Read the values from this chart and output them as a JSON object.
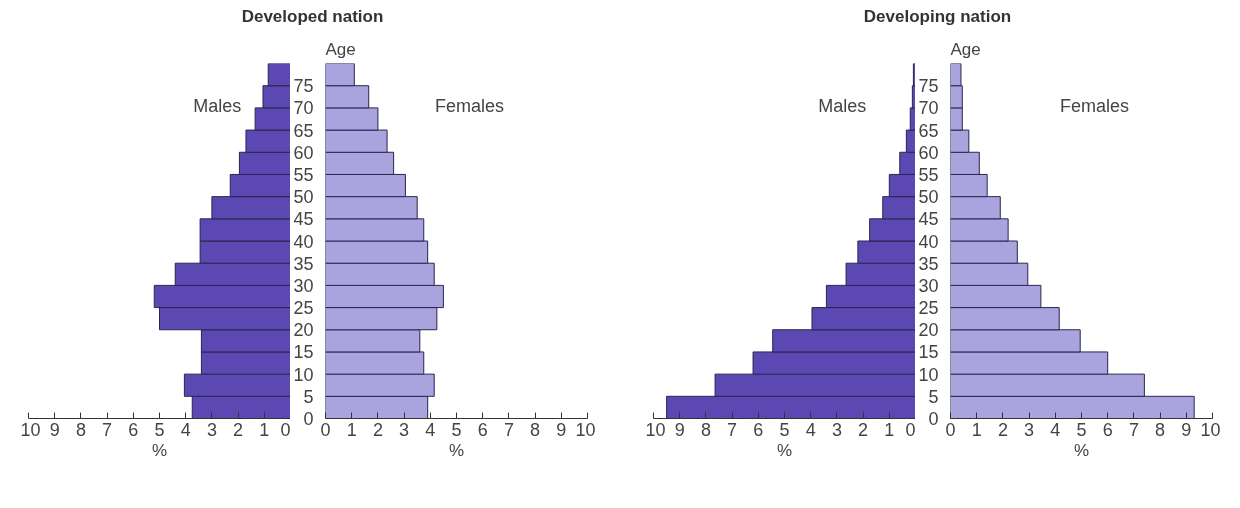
{
  "chart_data": [
    {
      "type": "bar",
      "orientation": "horizontal",
      "title": "Developed nation",
      "xlabel": "%",
      "tick_labels": "x",
      "x": [
        2.5,
        7.5,
        12.5,
        17.5,
        22.5,
        27.5,
        32.5,
        37.5,
        42.5,
        47.5,
        52.5,
        57.5,
        62.5,
        67.5,
        72.5,
        77.5
      ],
      "series": [
        {
          "name": "Males",
          "color": "#5c48b2",
          "values": [
            3.75,
            4.05,
            3.4,
            3.4,
            5.0,
            5.2,
            4.4,
            3.45,
            3.45,
            3.0,
            2.3,
            1.95,
            1.7,
            1.35,
            1.05,
            0.85
          ]
        }
      ],
      "xlim": [
        10,
        0
      ],
      "xticks": [
        0,
        1,
        2,
        3,
        4,
        5,
        6,
        7,
        8,
        9,
        10
      ],
      "ylim": [
        0,
        80
      ]
    },
    {
      "type": "bar",
      "orientation": "horizontal",
      "xlabel": "%",
      "ylabel": "Age",
      "x": [
        2.5,
        7.5,
        12.5,
        17.5,
        22.5,
        27.5,
        32.5,
        37.5,
        42.5,
        47.5,
        52.5,
        57.5,
        62.5,
        67.5,
        72.5,
        77.5
      ],
      "series": [
        {
          "name": "Females",
          "color": "#aaa4de",
          "values": [
            3.9,
            4.15,
            3.75,
            3.6,
            4.25,
            4.5,
            4.15,
            3.9,
            3.75,
            3.5,
            3.05,
            2.6,
            2.35,
            2.0,
            1.65,
            1.1
          ]
        }
      ],
      "xlim": [
        0,
        10
      ],
      "xticks": [
        0,
        1,
        2,
        3,
        4,
        5,
        6,
        7,
        8,
        9,
        10
      ],
      "ylim": [
        0,
        80
      ],
      "yticks": [
        0,
        5,
        10,
        15,
        20,
        25,
        30,
        35,
        40,
        45,
        50,
        55,
        60,
        65,
        70,
        75
      ]
    },
    {
      "type": "bar",
      "orientation": "horizontal",
      "title": "Developing nation",
      "xlabel": "%",
      "tick_labels": "x",
      "x": [
        2.5,
        7.5,
        12.5,
        17.5,
        22.5,
        27.5,
        32.5,
        37.5,
        42.5,
        47.5,
        52.5,
        57.5,
        62.5,
        67.5,
        72.5,
        77.5
      ],
      "series": [
        {
          "name": "Males",
          "color": "#5c48b2",
          "values": [
            9.5,
            7.65,
            6.2,
            5.45,
            3.95,
            3.4,
            2.65,
            2.2,
            1.75,
            1.25,
            1.0,
            0.6,
            0.35,
            0.2,
            0.12,
            0.08
          ]
        }
      ],
      "xlim": [
        10,
        0
      ],
      "xticks": [
        0,
        1,
        2,
        3,
        4,
        5,
        6,
        7,
        8,
        9,
        10
      ],
      "ylim": [
        0,
        80
      ]
    },
    {
      "type": "bar",
      "orientation": "horizontal",
      "xlabel": "%",
      "ylabel": "Age",
      "x": [
        2.5,
        7.5,
        12.5,
        17.5,
        22.5,
        27.5,
        32.5,
        37.5,
        42.5,
        47.5,
        52.5,
        57.5,
        62.5,
        67.5,
        72.5,
        77.5
      ],
      "series": [
        {
          "name": "Females",
          "color": "#aaa4de",
          "values": [
            9.3,
            7.4,
            6.0,
            4.95,
            4.15,
            3.45,
            2.95,
            2.55,
            2.2,
            1.9,
            1.4,
            1.1,
            0.7,
            0.45,
            0.45,
            0.4
          ]
        }
      ],
      "xlim": [
        0,
        10
      ],
      "xticks": [
        0,
        1,
        2,
        3,
        4,
        5,
        6,
        7,
        8,
        9,
        10
      ],
      "ylim": [
        0,
        80
      ],
      "yticks": [
        0,
        5,
        10,
        15,
        20,
        25,
        30,
        35,
        40,
        45,
        50,
        55,
        60,
        65,
        70,
        75
      ]
    }
  ]
}
